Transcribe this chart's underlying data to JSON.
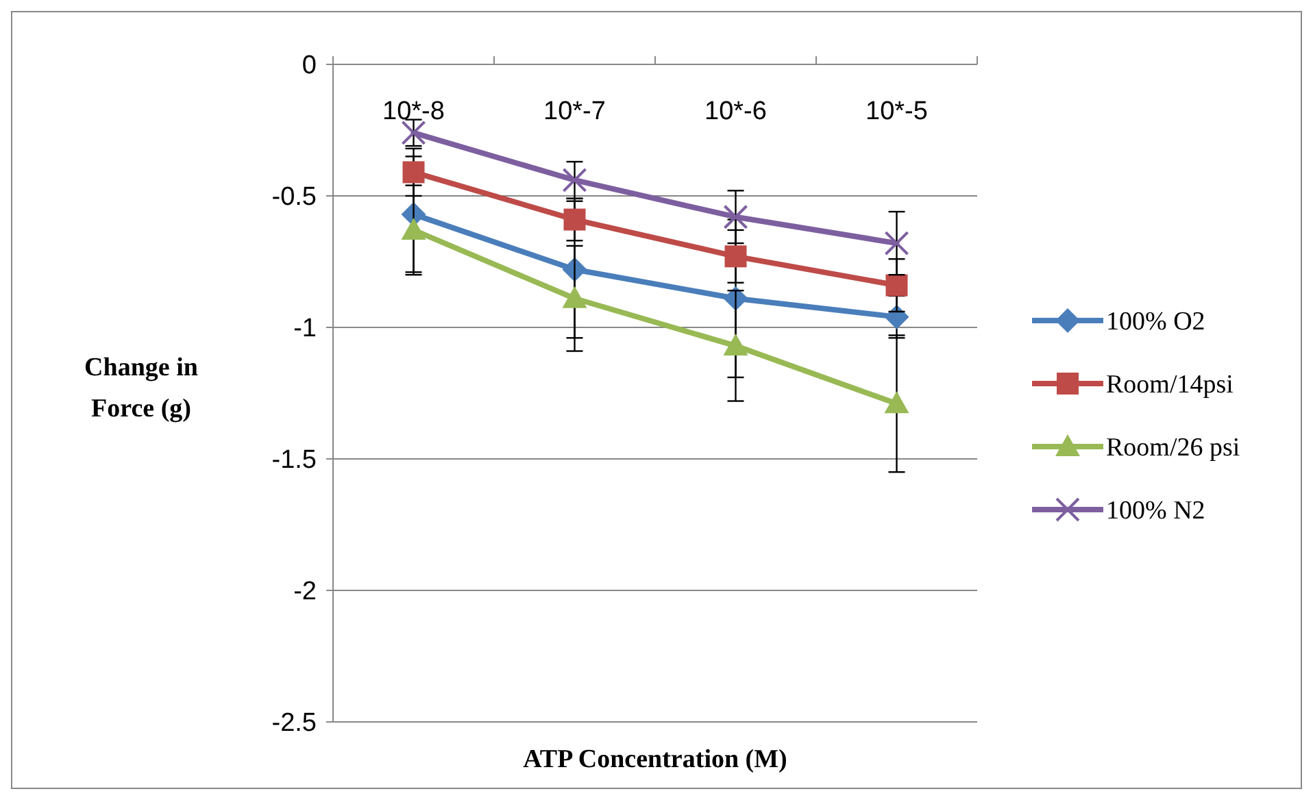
{
  "chart_data": {
    "type": "line",
    "xlabel": "ATP Concentration (M)",
    "ylabel": "Change in Force (g)",
    "categories": [
      "10*-8",
      "10*-7",
      "10*-6",
      "10*-5"
    ],
    "series": [
      {
        "name": "100% O2",
        "color": "#4a7ebb",
        "marker": "diamond",
        "values": [
          -0.57,
          -0.78,
          -0.89,
          -0.96
        ],
        "errors": [
          0.22,
          0.26,
          0.3,
          0.08
        ]
      },
      {
        "name": "Room/14psi",
        "color": "#be4b48",
        "marker": "square",
        "values": [
          -0.41,
          -0.59,
          -0.73,
          -0.84
        ],
        "errors": [
          0.09,
          0.08,
          0.1,
          0.1
        ]
      },
      {
        "name": "Room/26 psi",
        "color": "#98b954",
        "marker": "triangle",
        "values": [
          -0.63,
          -0.89,
          -1.07,
          -1.29
        ],
        "errors": [
          0.17,
          0.2,
          0.21,
          0.26
        ]
      },
      {
        "name": "100% N2",
        "color": "#7d5fa0",
        "marker": "cross",
        "values": [
          -0.26,
          -0.44,
          -0.58,
          -0.68
        ],
        "errors": [
          0.05,
          0.07,
          0.1,
          0.12
        ]
      }
    ],
    "ylim": [
      -2.5,
      0
    ],
    "yticks": [
      0,
      -0.5,
      -1,
      -1.5,
      -2,
      -2.5
    ],
    "grid": "y",
    "legend": "right"
  }
}
